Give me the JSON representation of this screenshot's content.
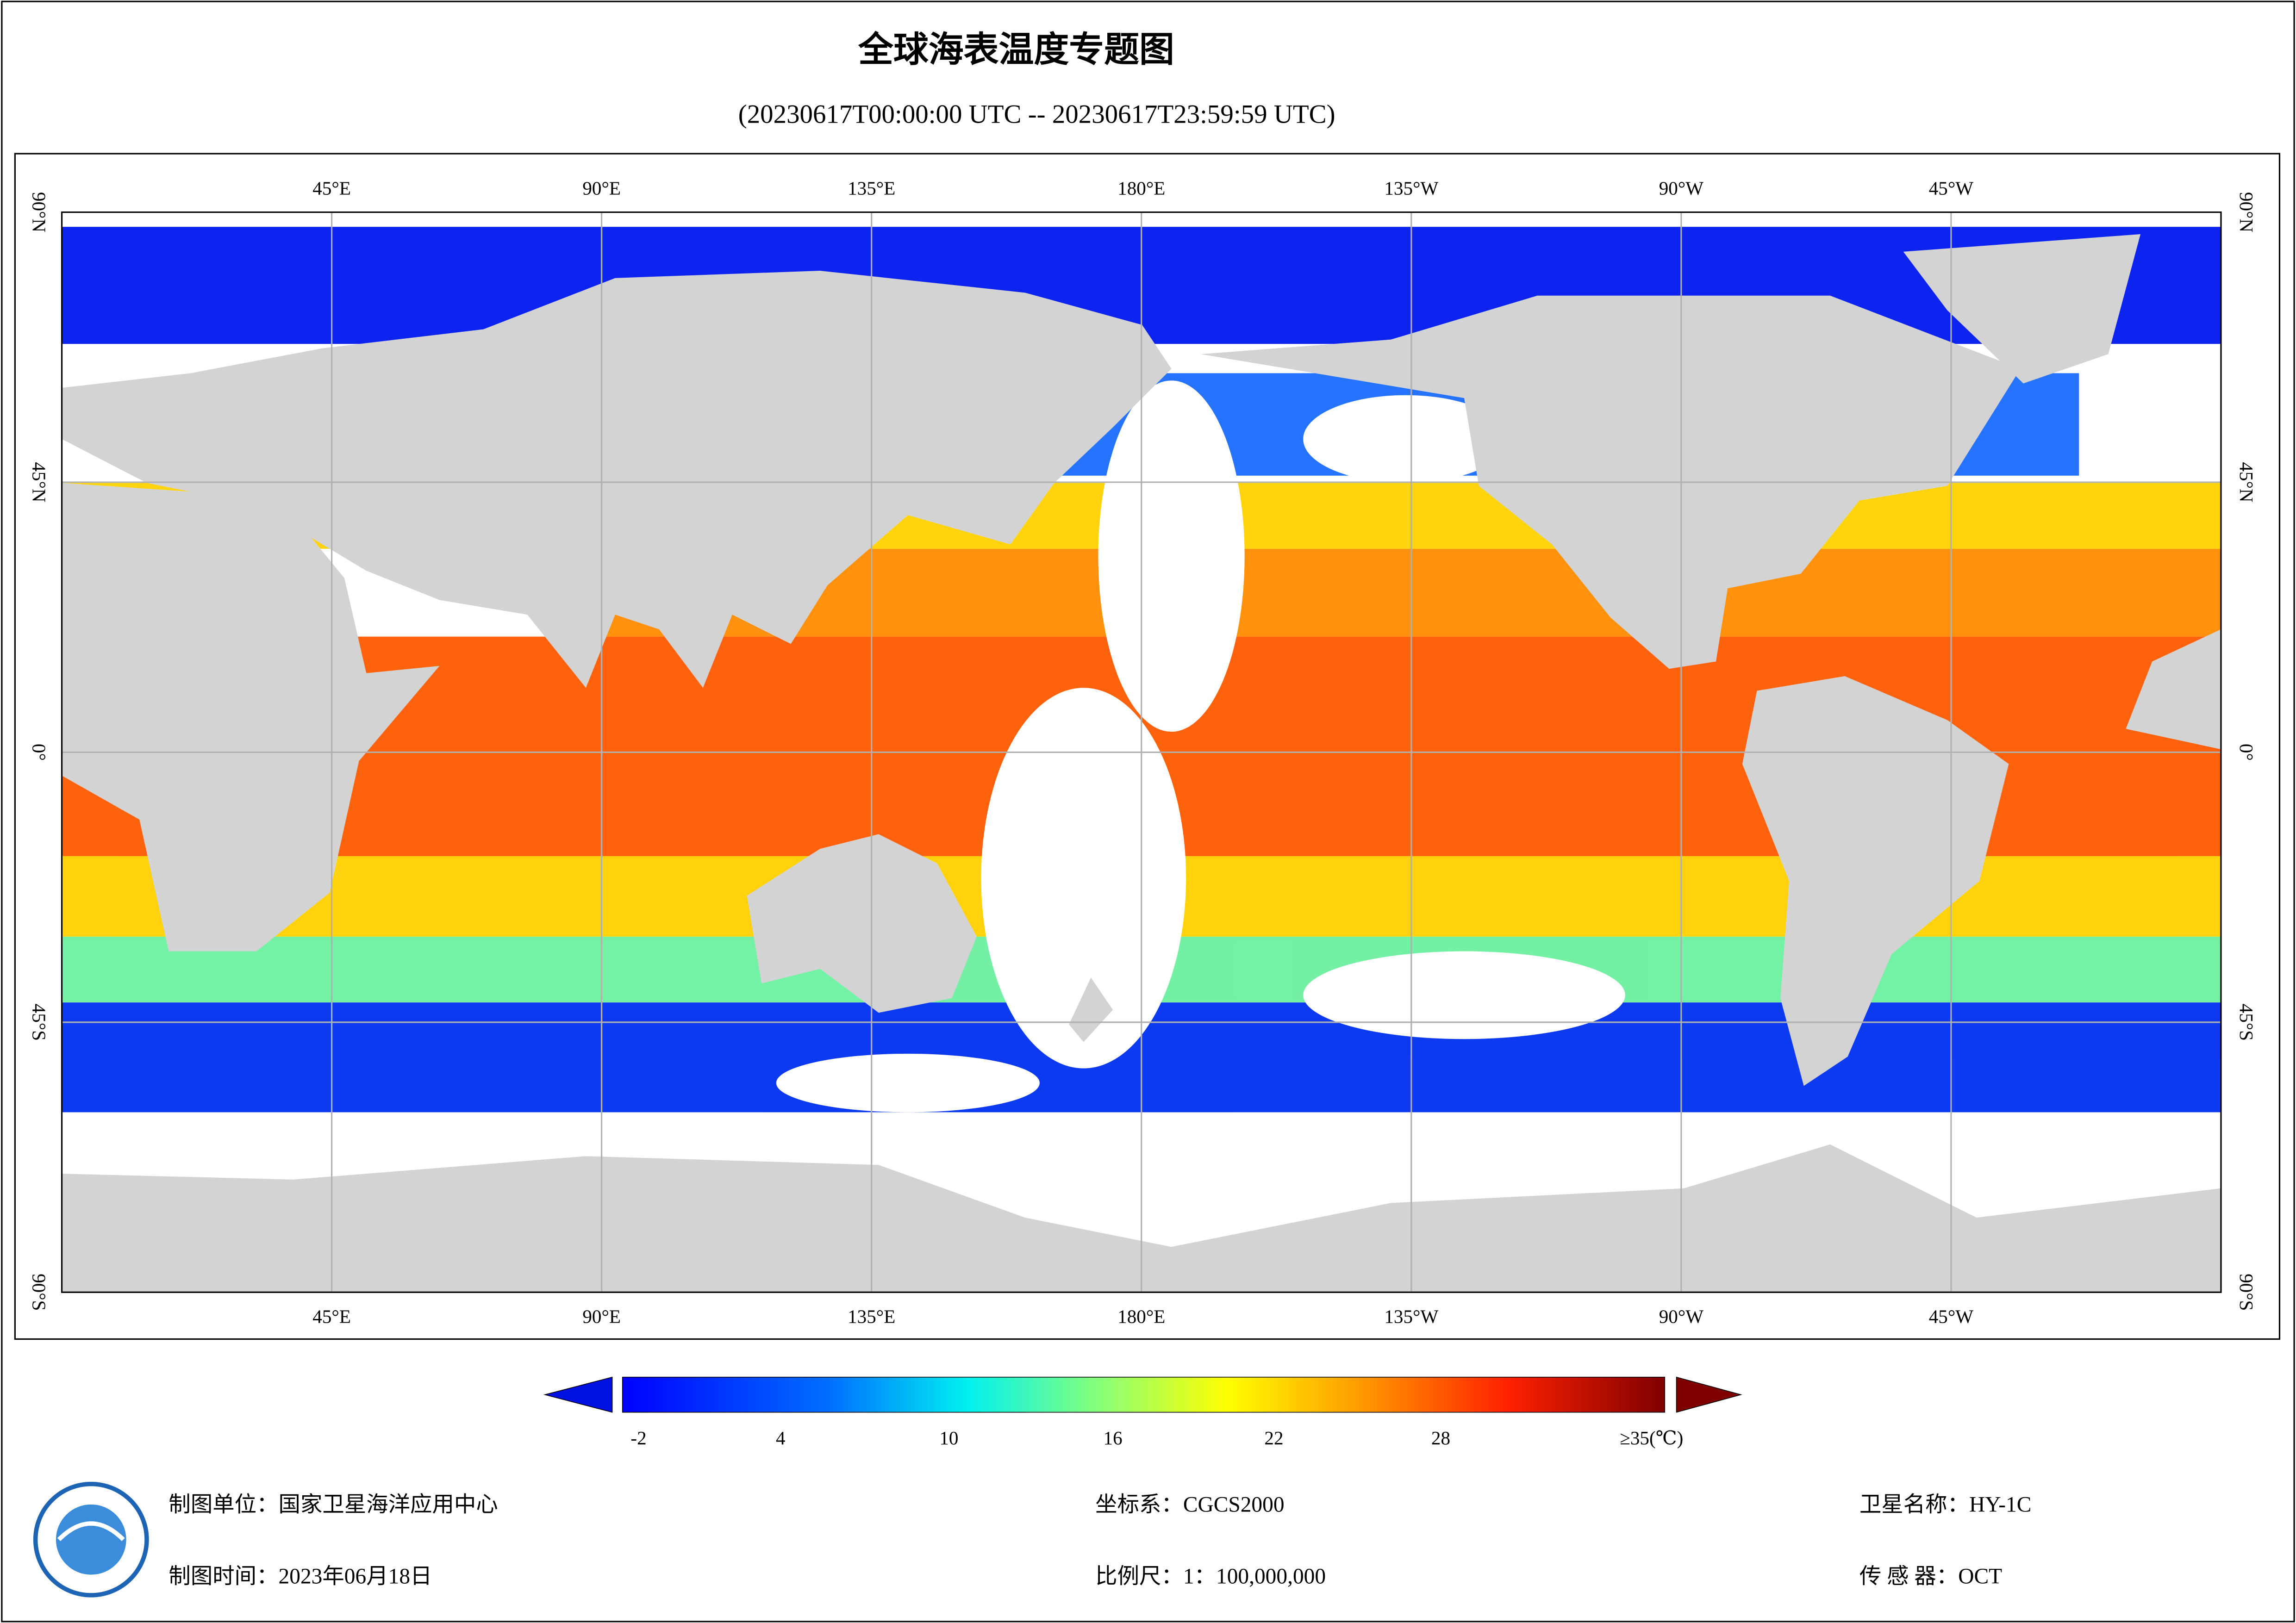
{
  "title": "全球海表温度专题图",
  "subtitle": "(20230617T00:00:00 UTC -- 20230617T23:59:59 UTC)",
  "map": {
    "longitude_labels": [
      "45°E",
      "90°E",
      "135°E",
      "180°E",
      "135°W",
      "90°W",
      "45°W"
    ],
    "latitude_labels": [
      "90°N",
      "45°N",
      "0°",
      "45°S",
      "90°S"
    ]
  },
  "colorbar": {
    "tick_labels": [
      "-2",
      "4",
      "10",
      "16",
      "22",
      "28",
      "≥35(℃)"
    ]
  },
  "footer": {
    "producer": "制图单位：国家卫星海洋应用中心",
    "date": "制图时间：2023年06月18日",
    "coordinate_system": "坐标系：CGCS2000",
    "scale": "比例尺：1：100,000,000",
    "satellite": "卫星名称：HY-1C",
    "sensor": "传 感 器：OCT"
  }
}
